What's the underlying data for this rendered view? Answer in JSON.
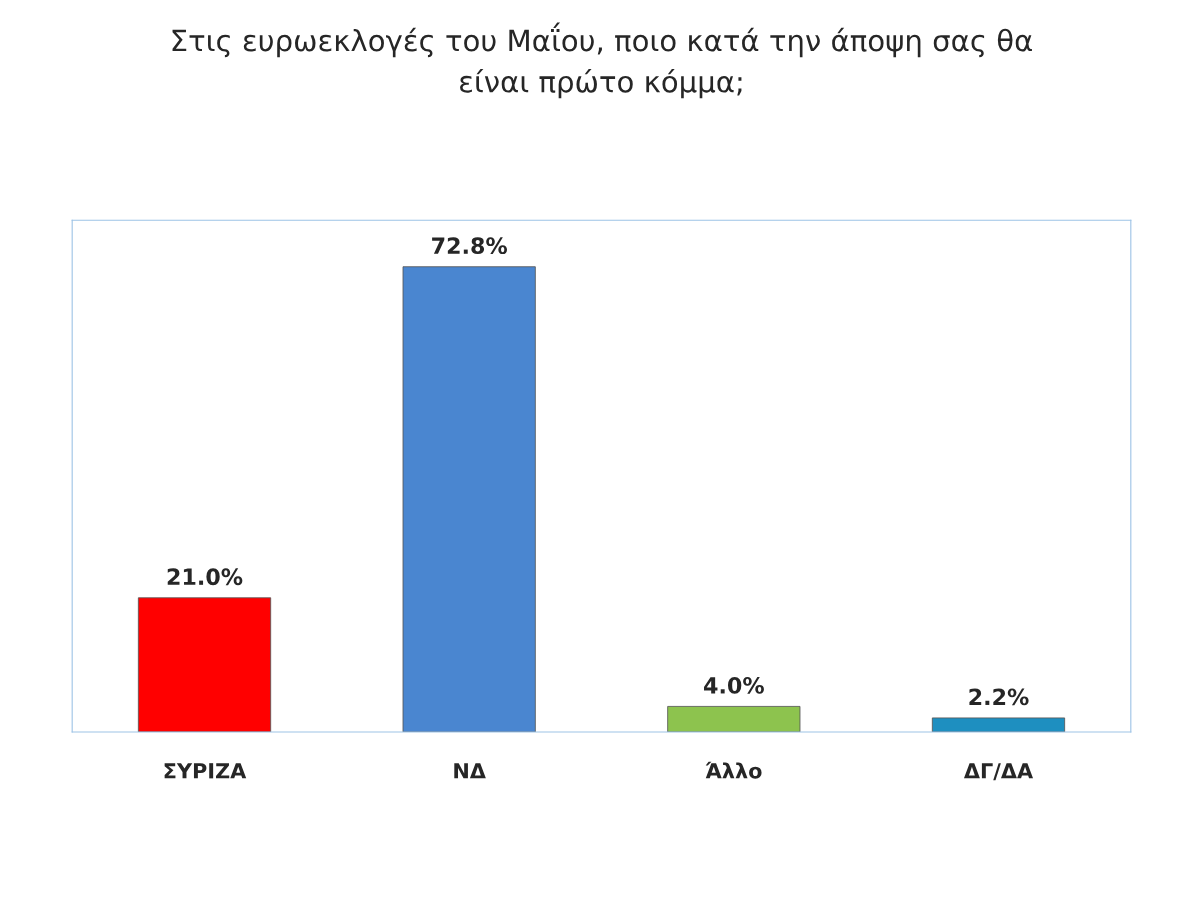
{
  "chart_data": {
    "type": "bar",
    "title": "Στις ευρωεκλογές του Μαΐου, ποιο κατά την άποψη σας θα\nείναι πρώτο κόμμα;",
    "categories": [
      "ΣΥΡΙΖΑ",
      "ΝΔ",
      "Άλλο",
      "ΔΓ/ΔΑ"
    ],
    "values": [
      21.0,
      72.8,
      4.0,
      2.2
    ],
    "colors": [
      "#ff0000",
      "#4a86d0",
      "#8dc34e",
      "#1e8fc0"
    ],
    "value_labels": [
      "21.0%",
      "72.8%",
      "4.0%",
      "2.2%"
    ],
    "grid": false,
    "legend": false
  }
}
